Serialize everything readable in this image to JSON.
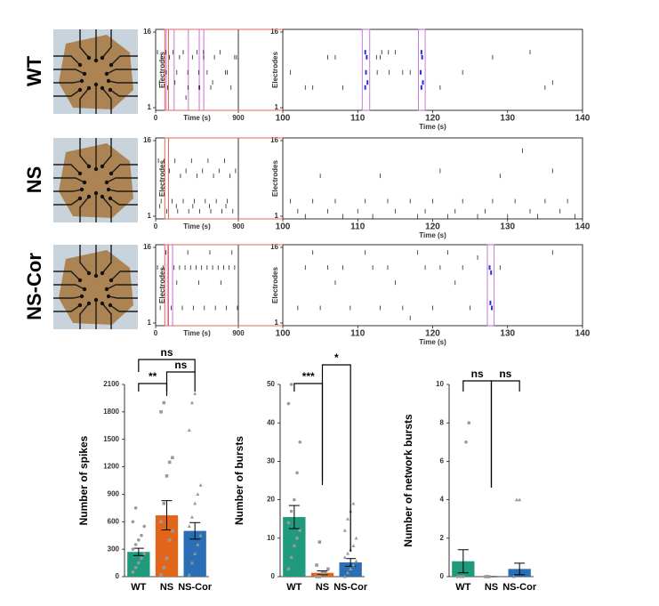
{
  "row_labels": [
    "WT",
    "NS",
    "NS-Cor"
  ],
  "chart_data": [
    {
      "type": "raster",
      "xlabel": "Time (s)",
      "ylabel": "Electrodes",
      "xlim": [
        0,
        900
      ],
      "xticks": [
        0,
        900
      ],
      "ylim": [
        1,
        16
      ],
      "yticks": [
        1,
        16
      ],
      "x": [
        20,
        60,
        110,
        115,
        150,
        190,
        230,
        260,
        300,
        350,
        352,
        400,
        450,
        470,
        472,
        520,
        522,
        560,
        600,
        640,
        700,
        760,
        820,
        860,
        40,
        130,
        210,
        330,
        480,
        620,
        780,
        880
      ],
      "y": [
        12,
        11,
        12,
        8,
        11,
        12,
        8,
        11,
        12,
        8,
        5,
        11,
        12,
        8,
        5,
        12,
        11,
        8,
        5,
        11,
        12,
        8,
        5,
        11,
        6,
        5,
        6,
        3,
        5,
        6,
        8,
        11
      ],
      "bursts": [
        [
          110,
          117
        ],
        [
          195,
          200
        ],
        [
          350,
          356
        ],
        [
          470,
          476
        ],
        [
          520,
          526
        ]
      ]
    },
    {
      "type": "raster",
      "xlabel": "Time (s)",
      "ylabel": "Electrodes",
      "xlim": [
        100,
        140
      ],
      "xticks": [
        100,
        110,
        120,
        130,
        140
      ],
      "ylim": [
        1,
        16
      ],
      "yticks": [
        1,
        16
      ],
      "x": [
        101,
        103,
        104,
        106,
        107,
        108,
        111,
        111.2,
        111.1,
        111.3,
        111,
        112.5,
        112.6,
        113,
        113.2,
        114.1,
        114.2,
        115,
        116,
        117,
        118.5,
        118.6,
        118.4,
        118.7,
        118.5,
        121,
        124,
        128,
        133,
        135,
        136
      ],
      "y": [
        8,
        5,
        5,
        11,
        11,
        5,
        12,
        11,
        8,
        6,
        5,
        11,
        8,
        11,
        12,
        12,
        8,
        12,
        8,
        8,
        12,
        11,
        8,
        6,
        5,
        5,
        8,
        11,
        12,
        5,
        6
      ],
      "bursts": [
        [
          110.6,
          111.6
        ],
        [
          118.1,
          119
        ]
      ]
    },
    {
      "type": "raster",
      "xlabel": "Time (s)",
      "ylabel": "Electrodes",
      "xlim": [
        0,
        900
      ],
      "xticks": [
        0,
        900
      ],
      "ylim": [
        1,
        16
      ],
      "yticks": [
        1,
        16
      ],
      "x": [
        30,
        90,
        150,
        210,
        270,
        330,
        390,
        450,
        510,
        570,
        630,
        690,
        750,
        810,
        870,
        60,
        180,
        300,
        420,
        540,
        660,
        780,
        120,
        240,
        360,
        480,
        600,
        720,
        840,
        45,
        225,
        405,
        585,
        765
      ],
      "y": [
        12,
        12,
        10,
        12,
        9,
        10,
        12,
        9,
        10,
        12,
        9,
        10,
        12,
        9,
        10,
        4,
        4,
        4,
        4,
        4,
        4,
        4,
        2,
        2,
        2,
        2,
        2,
        2,
        2,
        3,
        3,
        3,
        3,
        3
      ],
      "bursts": []
    },
    {
      "type": "raster",
      "xlabel": "Time (s)",
      "ylabel": "Electrodes",
      "xlim": [
        100,
        140
      ],
      "xticks": [
        100,
        110,
        120,
        130,
        140
      ],
      "ylim": [
        1,
        16
      ],
      "yticks": [
        1,
        16
      ],
      "x": [
        101,
        104,
        107,
        111,
        114,
        117,
        120,
        124,
        128,
        131,
        135,
        138,
        102,
        106,
        110,
        115,
        119,
        123,
        127,
        133,
        137,
        103,
        108,
        112,
        118,
        122,
        126,
        130,
        134,
        139,
        105,
        113,
        121,
        129,
        136,
        132
      ],
      "y": [
        4,
        4,
        4,
        4,
        4,
        4,
        4,
        4,
        4,
        4,
        4,
        4,
        2,
        2,
        2,
        2,
        2,
        2,
        2,
        2,
        2,
        1,
        1,
        1,
        1,
        1,
        1,
        1,
        1,
        1,
        9,
        9,
        10,
        9,
        10,
        14
      ],
      "bursts": []
    },
    {
      "type": "raster",
      "xlabel": "Time (s)",
      "ylabel": "Electrodes",
      "xlim": [
        0,
        900
      ],
      "xticks": [
        0,
        900
      ],
      "ylim": [
        1,
        16
      ],
      "yticks": [
        1,
        16
      ],
      "x": [
        20,
        80,
        140,
        200,
        260,
        320,
        380,
        440,
        500,
        560,
        620,
        680,
        740,
        800,
        860,
        50,
        170,
        290,
        410,
        530,
        650,
        770,
        890,
        110,
        350,
        590,
        830,
        230,
        470,
        710
      ],
      "y": [
        12,
        12,
        12,
        12,
        12,
        12,
        12,
        12,
        12,
        12,
        12,
        12,
        12,
        12,
        12,
        4,
        4,
        4,
        4,
        4,
        4,
        4,
        4,
        15,
        15,
        15,
        15,
        9,
        9,
        9
      ],
      "bursts": [
        [
          125,
          131
        ],
        [
          180,
          186
        ]
      ]
    },
    {
      "type": "raster",
      "xlabel": "Time (s)",
      "ylabel": "Electrodes",
      "xlim": [
        100,
        140
      ],
      "xticks": [
        100,
        110,
        120,
        130,
        140
      ],
      "ylim": [
        1,
        16
      ],
      "yticks": [
        1,
        16
      ],
      "x": [
        103,
        106,
        108,
        112,
        114,
        119,
        121,
        124,
        127.6,
        127.8,
        127.7,
        102,
        105,
        109,
        113,
        116,
        120,
        125,
        127.9,
        104,
        111,
        118,
        122,
        126,
        107,
        115,
        123,
        117,
        129,
        136
      ],
      "y": [
        12,
        12,
        12,
        12,
        12,
        12,
        12,
        12,
        12,
        11,
        5,
        4,
        4,
        4,
        4,
        4,
        4,
        4,
        4,
        15,
        15,
        15,
        15,
        14,
        9,
        9,
        9,
        2,
        12,
        15
      ],
      "bursts": [
        [
          127.3,
          128.2
        ]
      ]
    },
    {
      "type": "bar",
      "ylabel": "Number of spikes",
      "categories": [
        "WT",
        "NS",
        "NS-Cor"
      ],
      "values": [
        270,
        670,
        500
      ],
      "errors": [
        40,
        160,
        90
      ],
      "colors": [
        "#1f9a7c",
        "#e2661a",
        "#2a6fb5"
      ],
      "ylim": [
        0,
        2100
      ],
      "yticks": [
        0,
        300,
        600,
        900,
        1200,
        1500,
        1800,
        2100
      ],
      "points": [
        [
          50,
          100,
          150,
          200,
          250,
          300,
          350,
          400,
          450,
          550,
          600,
          750
        ],
        [
          20,
          100,
          200,
          400,
          500,
          600,
          800,
          1100,
          1250,
          1300,
          1800,
          1900
        ],
        [
          20,
          150,
          250,
          350,
          450,
          550,
          650,
          800,
          900,
          1000,
          1600,
          1900,
          2000
        ]
      ],
      "annotations": [
        "ns",
        "**",
        "ns"
      ]
    },
    {
      "type": "bar",
      "ylabel": "Number of bursts",
      "categories": [
        "WT",
        "NS",
        "NS-Cor"
      ],
      "values": [
        15.5,
        1,
        3.7
      ],
      "errors": [
        3,
        0.5,
        1
      ],
      "colors": [
        "#1f9a7c",
        "#e2661a",
        "#2a6fb5"
      ],
      "ylim": [
        0,
        50
      ],
      "yticks": [
        0,
        10,
        20,
        30,
        40,
        50
      ],
      "points": [
        [
          2,
          5,
          8,
          10,
          12,
          14,
          17,
          20,
          27,
          35,
          45,
          50
        ],
        [
          0,
          0,
          1,
          1,
          2,
          3,
          9
        ],
        [
          0,
          1,
          2,
          3,
          4,
          5,
          6,
          7,
          8,
          10,
          12,
          15,
          17,
          19
        ]
      ],
      "annotations": [
        "***",
        "*"
      ]
    },
    {
      "type": "bar",
      "ylabel": "Number of network bursts",
      "categories": [
        "WT",
        "NS",
        "NS-Cor"
      ],
      "values": [
        0.8,
        0,
        0.4
      ],
      "errors": [
        0.6,
        0,
        0.3
      ],
      "colors": [
        "#1f9a7c",
        "#e2661a",
        "#2a6fb5"
      ],
      "ylim": [
        0,
        10
      ],
      "yticks": [
        0,
        2,
        4,
        6,
        8,
        10
      ],
      "points": [
        [
          0,
          0,
          0,
          7,
          8
        ],
        [
          0,
          0
        ],
        [
          0,
          4,
          4
        ]
      ],
      "annotations": [
        "ns",
        "ns"
      ]
    }
  ]
}
